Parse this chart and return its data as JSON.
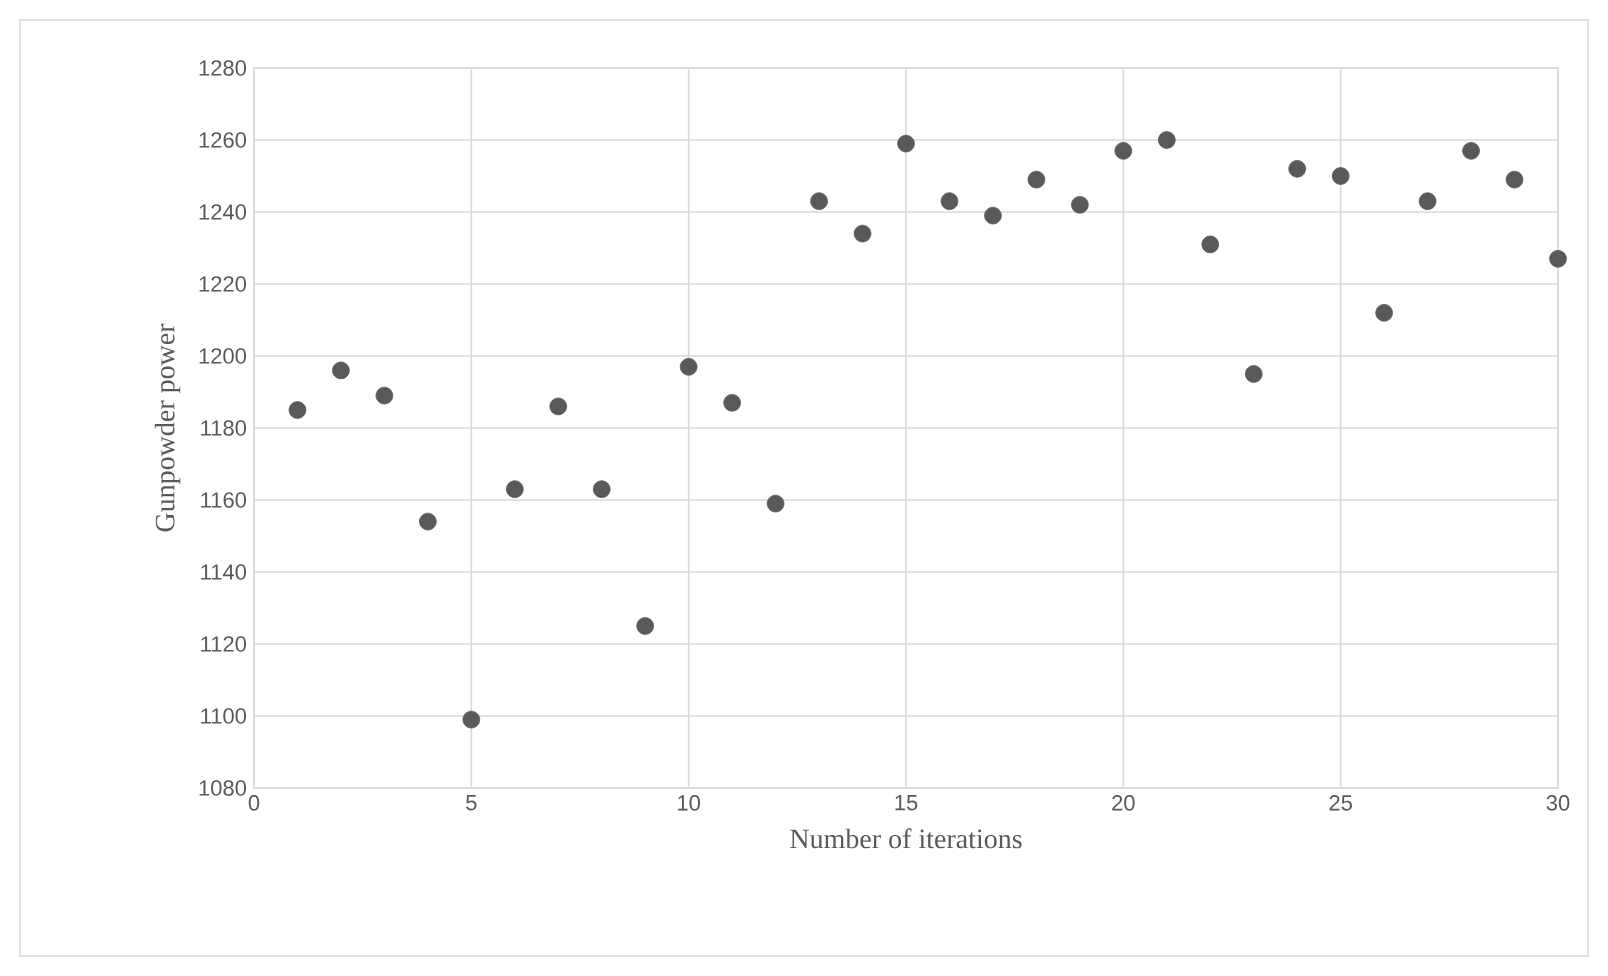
{
  "chart_data": {
    "type": "scatter",
    "xlabel": "Number of iterations",
    "ylabel": "Gunpowder power",
    "x": [
      1,
      2,
      3,
      4,
      5,
      6,
      7,
      8,
      9,
      10,
      11,
      12,
      13,
      14,
      15,
      16,
      17,
      18,
      19,
      20,
      21,
      22,
      23,
      24,
      25,
      26,
      27,
      28,
      29,
      30
    ],
    "series": [
      {
        "color": "#595959",
        "values": [
          1185,
          1196,
          1189,
          1154,
          1099,
          1163,
          1186,
          1163,
          1125,
          1197,
          1187,
          1159,
          1243,
          1234,
          1259,
          1243,
          1239,
          1249,
          1242,
          1257,
          1260,
          1231,
          1195,
          1252,
          1250,
          1212,
          1243,
          1257,
          1249,
          1227
        ]
      }
    ],
    "xlim": [
      0,
      30
    ],
    "xticks": [
      0,
      5,
      10,
      15,
      20,
      25,
      30
    ],
    "ylim": [
      1080,
      1280
    ],
    "yticks": [
      1080,
      1100,
      1120,
      1140,
      1160,
      1180,
      1200,
      1220,
      1240,
      1260,
      1280
    ],
    "grid": true,
    "marker": "circle"
  }
}
